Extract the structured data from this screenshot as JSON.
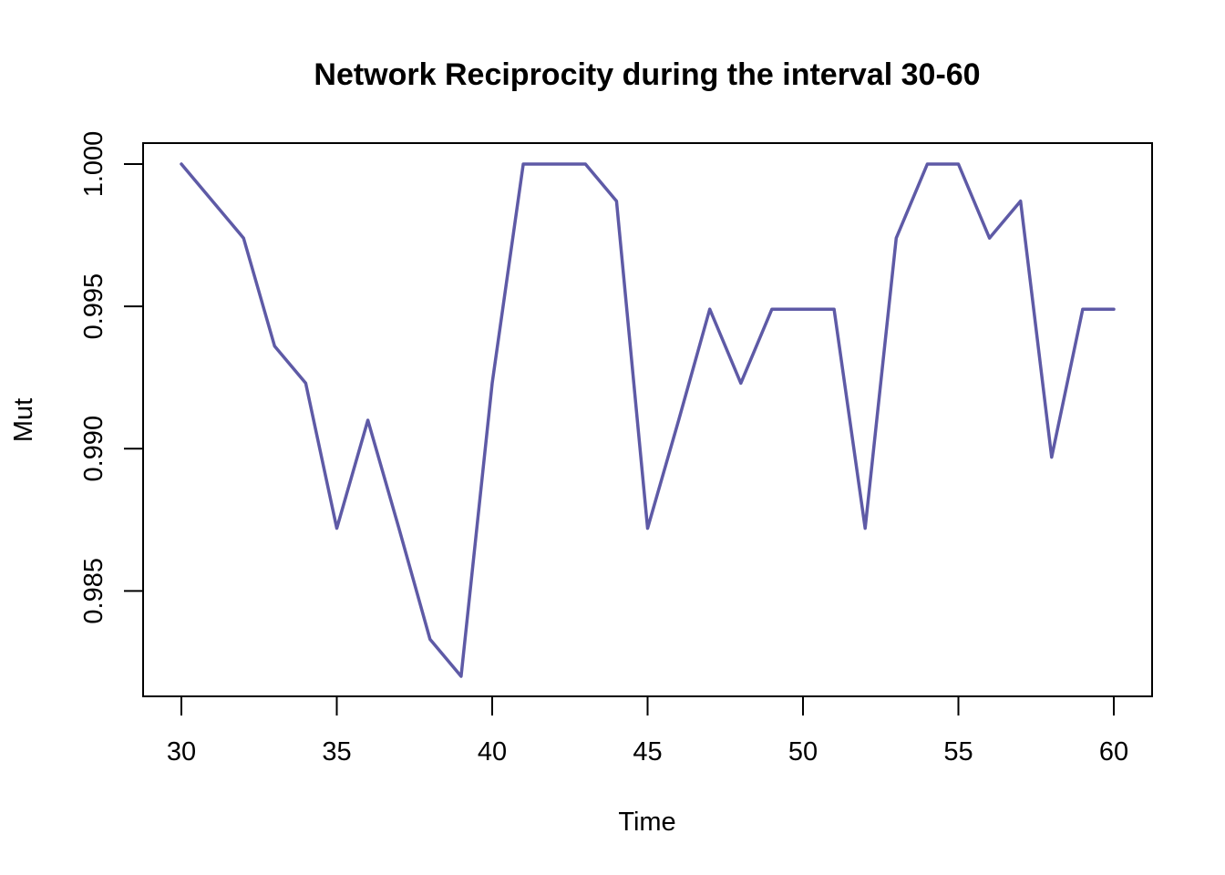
{
  "chart_data": {
    "type": "line",
    "title": "Network Reciprocity during the interval 30-60",
    "xlabel": "Time",
    "ylabel": "Mut",
    "xlim": [
      30,
      60
    ],
    "ylim": [
      0.982,
      1.0
    ],
    "x_ticks": [
      30,
      35,
      40,
      45,
      50,
      55,
      60
    ],
    "x_tick_labels": [
      "30",
      "35",
      "40",
      "45",
      "50",
      "55",
      "60"
    ],
    "y_ticks": [
      0.985,
      0.99,
      0.995,
      1.0
    ],
    "y_tick_labels": [
      "0.985",
      "0.990",
      "0.995",
      "1.000"
    ],
    "grid": false,
    "line_color": "#5e5aa6",
    "series": [
      {
        "x": [
          30,
          31,
          32,
          33,
          34,
          35,
          36,
          37,
          38,
          39,
          40,
          41,
          42,
          43,
          44,
          45,
          46,
          47,
          48,
          49,
          50,
          51,
          52,
          53,
          54,
          55,
          56,
          57,
          58,
          59,
          60
        ],
        "values": [
          1.0,
          0.9987,
          0.9974,
          0.9936,
          0.9923,
          0.9872,
          0.991,
          0.9872,
          0.9833,
          0.982,
          0.9923,
          1.0,
          1.0,
          1.0,
          0.9987,
          0.9872,
          0.991,
          0.9949,
          0.9923,
          0.9949,
          0.9949,
          0.9949,
          0.9872,
          0.9974,
          1.0,
          1.0,
          0.9974,
          0.9987,
          0.9897,
          0.9949,
          0.9949
        ]
      }
    ]
  }
}
